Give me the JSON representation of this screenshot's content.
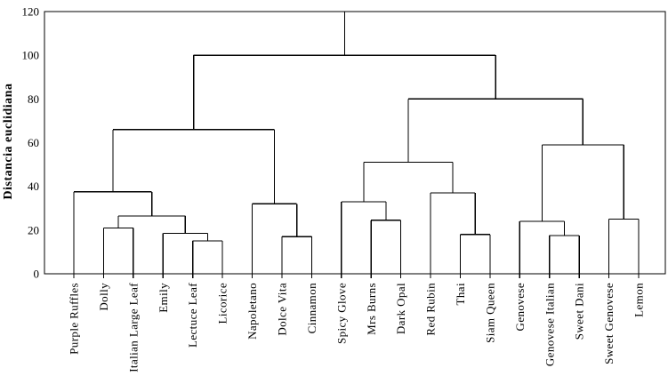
{
  "chart_data": {
    "type": "dendrogram",
    "title": "",
    "ylabel": "Distancia euclidiana",
    "xlabel": "",
    "ylim": [
      0,
      120
    ],
    "yticks": [
      0,
      20,
      40,
      60,
      80,
      100,
      120
    ],
    "grid": false,
    "legend": "none",
    "frame_box": true,
    "line_color": "#000000",
    "background_color": "#ffffff",
    "leaves": [
      "Purple Ruffles",
      "Dolly",
      "Italian Large Leaf",
      "Emily",
      "Lectuce Leaf",
      "Licorice",
      "Napoletano",
      "Dolce Vita",
      "Cinnamon",
      "Spicy Glove",
      "Mrs Burns",
      "Dark Opal",
      "Red Rubin",
      "Thai",
      "Siam Queen",
      "Genovese",
      "Genovese Italian",
      "Sweet Dani",
      "Sweet Genovese",
      "Lemon"
    ],
    "linkage": {
      "height": 100,
      "children": [
        {
          "height": 66,
          "children": [
            {
              "height": 37.5,
              "children": [
                "Purple Ruffles",
                {
                  "height": 26.5,
                  "children": [
                    {
                      "height": 21,
                      "children": [
                        "Dolly",
                        "Italian Large Leaf"
                      ]
                    },
                    {
                      "height": 18.5,
                      "children": [
                        "Emily",
                        {
                          "height": 15,
                          "children": [
                            "Lectuce Leaf",
                            "Licorice"
                          ]
                        }
                      ]
                    }
                  ]
                }
              ]
            },
            {
              "height": 32,
              "children": [
                "Napoletano",
                {
                  "height": 17,
                  "children": [
                    "Dolce Vita",
                    "Cinnamon"
                  ]
                }
              ]
            }
          ]
        },
        {
          "height": 80,
          "children": [
            {
              "height": 51,
              "children": [
                {
                  "height": 33,
                  "children": [
                    "Spicy Glove",
                    {
                      "height": 24.5,
                      "children": [
                        "Mrs Burns",
                        "Dark Opal"
                      ]
                    }
                  ]
                },
                {
                  "height": 37,
                  "children": [
                    "Red Rubin",
                    {
                      "height": 18,
                      "children": [
                        "Thai",
                        "Siam Queen"
                      ]
                    }
                  ]
                }
              ]
            },
            {
              "height": 59,
              "children": [
                {
                  "height": 24,
                  "children": [
                    "Genovese",
                    {
                      "height": 17.5,
                      "children": [
                        "Genovese Italian",
                        "Sweet Dani"
                      ]
                    }
                  ]
                },
                {
                  "height": 25,
                  "children": [
                    "Sweet Genovese",
                    "Lemon"
                  ]
                }
              ]
            }
          ]
        }
      ]
    }
  }
}
